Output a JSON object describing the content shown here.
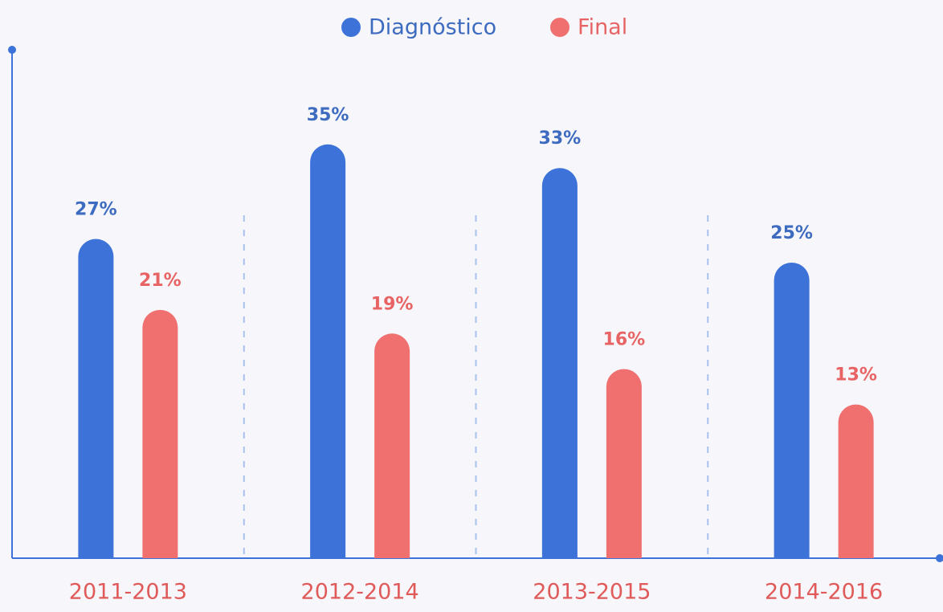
{
  "chart_data": {
    "type": "bar",
    "categories": [
      "2011-2013",
      "2012-2014",
      "2013-2015",
      "2014-2016"
    ],
    "series": [
      {
        "name": "Diagnóstico",
        "color": "#3d72d9",
        "values": [
          27,
          35,
          33,
          25
        ],
        "value_labels": [
          "27%",
          "35%",
          "33%",
          "25%"
        ]
      },
      {
        "name": "Final",
        "color": "#f07070",
        "values": [
          21,
          19,
          16,
          13
        ],
        "value_labels": [
          "21%",
          "19%",
          "16%",
          "13%"
        ]
      }
    ],
    "ylim": [
      0,
      43
    ],
    "legend": "top"
  }
}
